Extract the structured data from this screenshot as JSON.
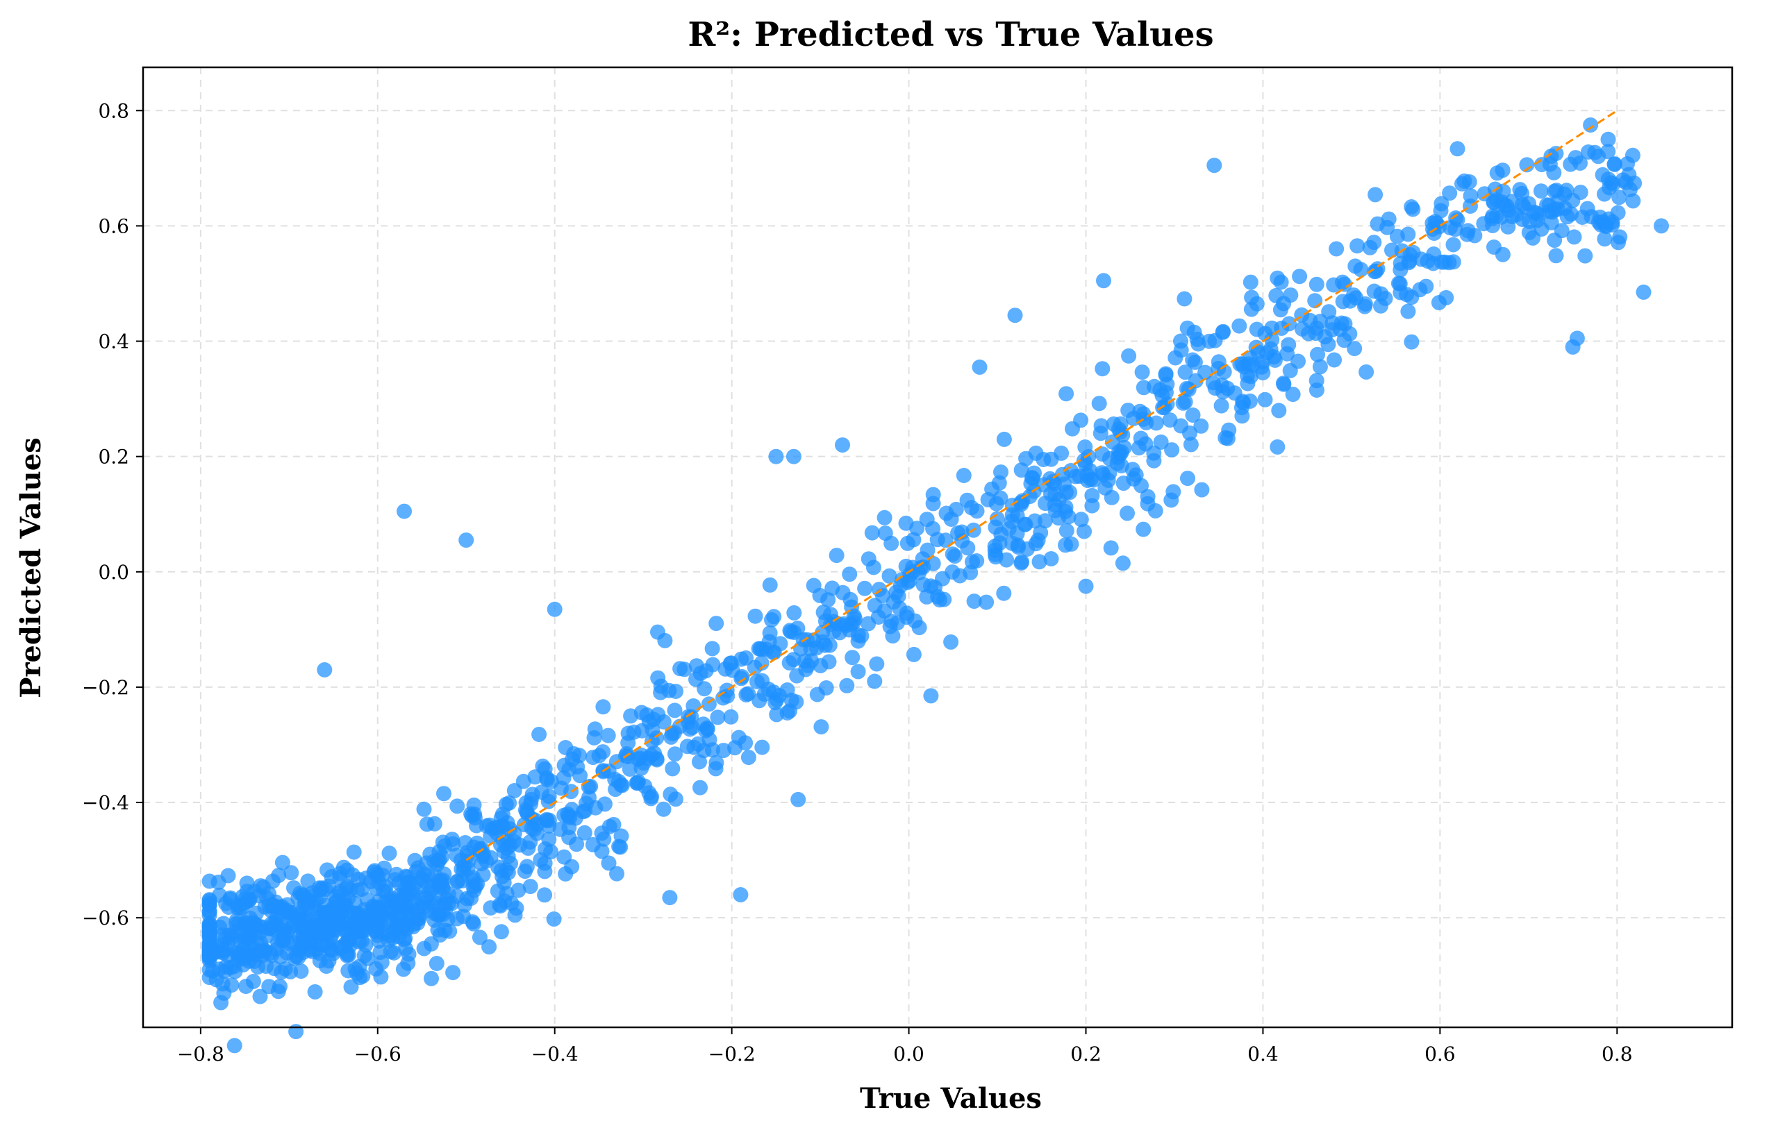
{
  "chart_data": {
    "type": "scatter",
    "title": "R²: Predicted vs True Values",
    "xlabel": "True Values",
    "ylabel": "Predicted Values",
    "xlim": [
      -0.865,
      0.93
    ],
    "ylim": [
      -0.79,
      0.875
    ],
    "xticks": [
      -0.8,
      -0.6,
      -0.4,
      -0.2,
      0.0,
      0.2,
      0.4,
      0.6,
      0.8
    ],
    "yticks": [
      -0.6,
      -0.4,
      -0.2,
      0.0,
      0.2,
      0.4,
      0.6,
      0.8
    ],
    "xtick_labels": [
      "−0.8",
      "−0.6",
      "−0.4",
      "−0.2",
      "0.0",
      "0.2",
      "0.4",
      "0.6",
      "0.8"
    ],
    "ytick_labels": [
      "−0.6",
      "−0.4",
      "−0.2",
      "0.0",
      "0.2",
      "0.4",
      "0.6",
      "0.8"
    ],
    "grid": true,
    "point_color": "#1E90FF",
    "reference_line": {
      "x": [
        -0.5,
        0.8
      ],
      "y": [
        -0.5,
        0.8
      ],
      "color": "#FF8C00",
      "style": "dashed"
    },
    "n_points": 1500,
    "points_outliers": [
      [
        -0.57,
        0.105
      ],
      [
        -0.5,
        0.055
      ],
      [
        -0.66,
        -0.17
      ],
      [
        -0.4,
        -0.065
      ],
      [
        0.345,
        0.705
      ],
      [
        0.75,
        0.39
      ],
      [
        0.755,
        0.405
      ],
      [
        0.83,
        0.485
      ],
      [
        0.85,
        0.6
      ],
      [
        0.77,
        0.775
      ],
      [
        0.79,
        0.75
      ],
      [
        -0.15,
        0.2
      ],
      [
        -0.13,
        0.2
      ],
      [
        0.2,
        -0.025
      ],
      [
        0.025,
        -0.215
      ],
      [
        -0.27,
        -0.565
      ],
      [
        -0.19,
        -0.56
      ],
      [
        -0.125,
        -0.395
      ],
      [
        0.22,
        0.505
      ],
      [
        0.12,
        0.445
      ],
      [
        -0.515,
        -0.695
      ],
      [
        -0.63,
        -0.72
      ],
      [
        -0.775,
        -0.63
      ],
      [
        0.08,
        0.355
      ],
      [
        -0.075,
        0.22
      ]
    ]
  }
}
